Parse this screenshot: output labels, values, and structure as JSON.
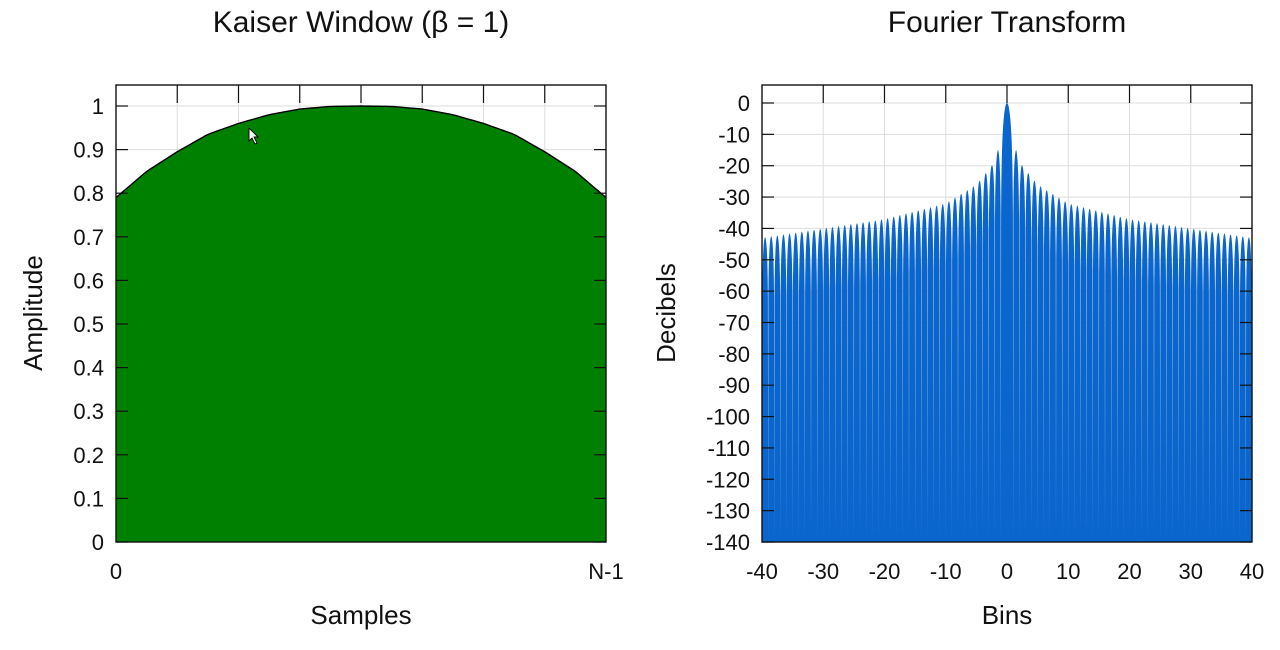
{
  "chart_data": [
    {
      "type": "area",
      "title": "Kaiser Window (β = 1)",
      "xlabel": "Samples",
      "ylabel": "Amplitude",
      "x_tick_labels": [
        "0",
        "N-1"
      ],
      "ylim": [
        0,
        1
      ],
      "y_ticks": [
        0,
        0.1,
        0.2,
        0.3,
        0.4,
        0.5,
        0.6,
        0.7,
        0.8,
        0.9,
        1
      ],
      "y_tick_labels": [
        "0",
        "0.1",
        "0.2",
        "0.3",
        "0.4",
        "0.5",
        "0.6",
        "0.7",
        "0.8",
        "0.9",
        "1"
      ],
      "x": [
        0,
        0.0625,
        0.125,
        0.1875,
        0.25,
        0.3125,
        0.375,
        0.4375,
        0.5,
        0.5625,
        0.625,
        0.6875,
        0.75,
        0.8125,
        0.875,
        0.9375,
        1
      ],
      "values": [
        0.79,
        0.85,
        0.895,
        0.935,
        0.96,
        0.98,
        0.993,
        0.999,
        1.0,
        0.999,
        0.993,
        0.98,
        0.96,
        0.935,
        0.895,
        0.85,
        0.79
      ],
      "grid": true,
      "fill_color": "#008000",
      "line_color": "#000000"
    },
    {
      "type": "area",
      "title": "Fourier Transform",
      "xlabel": "Bins",
      "ylabel": "Decibels",
      "xlim": [
        -40,
        40
      ],
      "x_ticks": [
        -40,
        -30,
        -20,
        -10,
        0,
        10,
        20,
        30,
        40
      ],
      "x_tick_labels": [
        "-40",
        "-30",
        "-20",
        "-10",
        "0",
        "10",
        "20",
        "30",
        "40"
      ],
      "ylim": [
        -140,
        5
      ],
      "y_ticks": [
        0,
        -10,
        -20,
        -30,
        -40,
        -50,
        -60,
        -70,
        -80,
        -90,
        -100,
        -110,
        -120,
        -130,
        -140
      ],
      "y_tick_labels": [
        "0",
        "-10",
        "-20",
        "-30",
        "-40",
        "-50",
        "-60",
        "-70",
        "-80",
        "-90",
        "-100",
        "-110",
        "-120",
        "-130",
        "-140"
      ],
      "mainlobe_width_bins": 1,
      "sidelobe_peak_db": {
        "bins": [
          1.5,
          2.5,
          5,
          10,
          20,
          30,
          40
        ],
        "db": [
          -15,
          -20,
          -26,
          -32,
          -37,
          -40,
          -43
        ]
      },
      "grid": true,
      "fill_color": "#0a66cc"
    }
  ]
}
